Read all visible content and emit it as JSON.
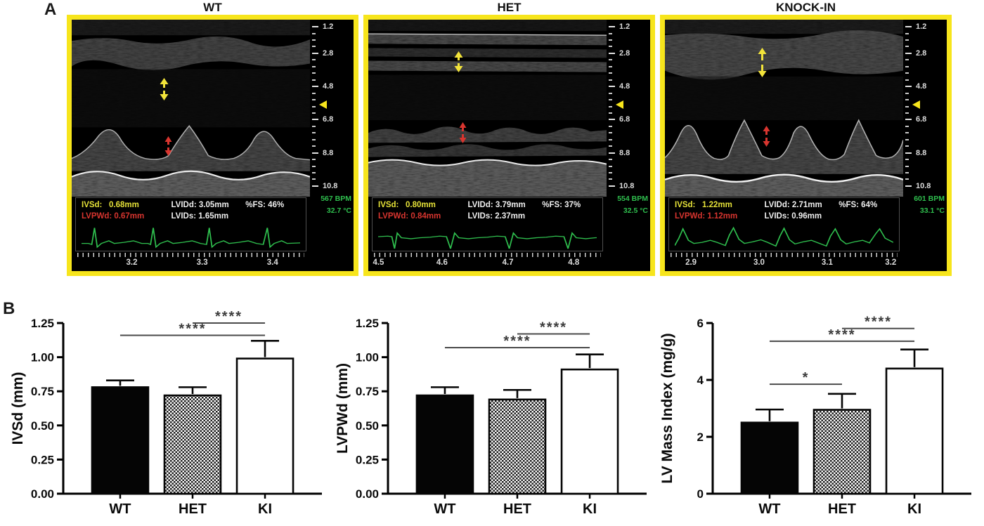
{
  "figure": {
    "panel_a_label": "A",
    "panel_b_label": "B"
  },
  "colors": {
    "frame_yellow": "#f7e51c",
    "ecg_green": "#2fbf4e",
    "overlay_yellow": "#e5e138",
    "overlay_red": "#d8352f",
    "overlay_white": "#efefef",
    "sig_gray": "#3c3c3c"
  },
  "panel_a": {
    "depth_scale": {
      "min": 1.0,
      "max": 11.0,
      "minor_step": 0.4,
      "major_ticks": [
        "1.2",
        "2.8",
        "4.8",
        "6.8",
        "8.8",
        "10.8"
      ],
      "focus_marker_depth": 5.9
    },
    "panels": [
      {
        "id": "wt",
        "title": "WT",
        "measurements": {
          "ivsd_label": "IVSd:",
          "ivsd_value": "0.68mm",
          "lvidd": "LVIDd: 3.05mm",
          "fs": "%FS: 46%",
          "lvpwd": "LVPWd: 0.67mm",
          "lvids": "LVIDs: 1.65mm"
        },
        "heart_rate": "567 BPM",
        "temperature": "32.7 °C",
        "time_labels": [
          {
            "label": "3.2",
            "x_pct": 24
          },
          {
            "label": "3.3",
            "x_pct": 55
          },
          {
            "label": "3.4",
            "x_pct": 86
          }
        ]
      },
      {
        "id": "het",
        "title": "HET",
        "measurements": {
          "ivsd_label": "IVSd:",
          "ivsd_value": "0.80mm",
          "lvidd": "LVIDd: 3.79mm",
          "fs": "%FS: 37%",
          "lvpwd": "LVPWd: 0.84mm",
          "lvids": "LVIDs: 2.37mm"
        },
        "heart_rate": "554 BPM",
        "temperature": "32.5 °C",
        "time_labels": [
          {
            "label": "4.5",
            "x_pct": 2
          },
          {
            "label": "4.6",
            "x_pct": 30
          },
          {
            "label": "4.7",
            "x_pct": 59
          },
          {
            "label": "4.8",
            "x_pct": 88
          }
        ]
      },
      {
        "id": "ki",
        "title": "KNOCK-IN",
        "measurements": {
          "ivsd_label": "IVSd:",
          "ivsd_value": "1.22mm",
          "lvidd": "LVIDd: 2.71mm",
          "fs": "%FS: 64%",
          "lvpwd": "LVPWd: 1.12mm",
          "lvids": "LVIDs: 0.96mm"
        },
        "heart_rate": "601 BPM",
        "temperature": "33.1 °C",
        "time_labels": [
          {
            "label": "2.9",
            "x_pct": 9
          },
          {
            "label": "3.0",
            "x_pct": 39
          },
          {
            "label": "3.1",
            "x_pct": 69
          },
          {
            "label": "3.2",
            "x_pct": 97
          }
        ]
      }
    ]
  },
  "chart_data": [
    {
      "type": "bar",
      "ylabel": "IVSd (mm)",
      "xlabel": "",
      "categories": [
        "WT",
        "HET",
        "KI"
      ],
      "values": [
        0.78,
        0.72,
        0.99
      ],
      "errors": [
        0.05,
        0.06,
        0.13
      ],
      "ylim": [
        0,
        1.25
      ],
      "yticks": [
        {
          "v": 0,
          "label": "0.00"
        },
        {
          "v": 0.25,
          "label": "0.25"
        },
        {
          "v": 0.5,
          "label": "0.50"
        },
        {
          "v": 0.75,
          "label": "0.75"
        },
        {
          "v": 1.0,
          "label": "1.00"
        },
        {
          "v": 1.25,
          "label": "1.25"
        }
      ],
      "bar_styles": [
        "black",
        "checker",
        "white"
      ],
      "grid": false,
      "legend": "none",
      "significance": [
        {
          "from": 0,
          "to": 2,
          "y": 1.16,
          "stars": "****"
        },
        {
          "from": 1,
          "to": 2,
          "y": 1.25,
          "stars": "****"
        }
      ]
    },
    {
      "type": "bar",
      "ylabel": "LVPWd (mm)",
      "xlabel": "",
      "categories": [
        "WT",
        "HET",
        "KI"
      ],
      "values": [
        0.72,
        0.69,
        0.91
      ],
      "errors": [
        0.06,
        0.07,
        0.11
      ],
      "ylim": [
        0,
        1.25
      ],
      "yticks": [
        {
          "v": 0,
          "label": "0.00"
        },
        {
          "v": 0.25,
          "label": "0.25"
        },
        {
          "v": 0.5,
          "label": "0.50"
        },
        {
          "v": 0.75,
          "label": "0.75"
        },
        {
          "v": 1.0,
          "label": "1.00"
        },
        {
          "v": 1.25,
          "label": "1.25"
        }
      ],
      "bar_styles": [
        "black",
        "checker",
        "white"
      ],
      "grid": false,
      "legend": "none",
      "significance": [
        {
          "from": 0,
          "to": 2,
          "y": 1.07,
          "stars": "****"
        },
        {
          "from": 1,
          "to": 2,
          "y": 1.17,
          "stars": "****"
        }
      ]
    },
    {
      "type": "bar",
      "ylabel": "LV Mass Index (mg/g)",
      "xlabel": "",
      "categories": [
        "WT",
        "HET",
        "KI"
      ],
      "values": [
        2.5,
        2.95,
        4.4
      ],
      "errors": [
        0.46,
        0.56,
        0.67
      ],
      "ylim": [
        0,
        6
      ],
      "yticks": [
        {
          "v": 0,
          "label": "0"
        },
        {
          "v": 2,
          "label": "2"
        },
        {
          "v": 4,
          "label": "4"
        },
        {
          "v": 6,
          "label": "6"
        }
      ],
      "bar_styles": [
        "black",
        "checker",
        "white"
      ],
      "grid": false,
      "legend": "none",
      "significance": [
        {
          "from": 0,
          "to": 1,
          "y": 3.85,
          "stars": "*"
        },
        {
          "from": 0,
          "to": 2,
          "y": 5.36,
          "stars": "****"
        },
        {
          "from": 1,
          "to": 2,
          "y": 5.81,
          "stars": "****"
        }
      ]
    }
  ]
}
